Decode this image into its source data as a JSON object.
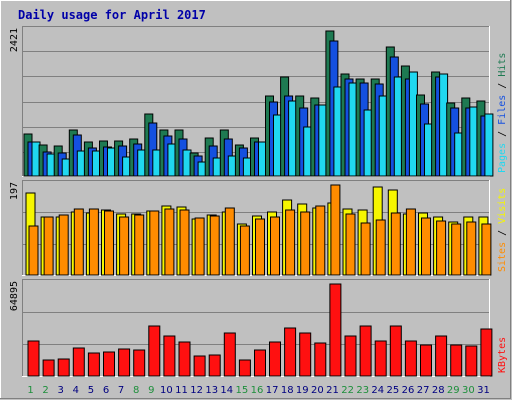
{
  "title": "Daily usage for April 2017",
  "colors": {
    "background": "#c0c0c0",
    "plot_bg": "#c0c0c0",
    "title": "#0000a8",
    "hits": "#1e7a52",
    "files": "#1450e0",
    "pages": "#20d8f0",
    "visits": "#f6f600",
    "sites": "#ff8c00",
    "kbytes": "#ff1010",
    "weekend_day": "#1e8f3c",
    "weekday_day": "#000080"
  },
  "legend_sep": "/",
  "chart_data": [
    {
      "type": "bar",
      "name": "hits-files-pages",
      "ymax_label": "2421",
      "ylim": [
        0,
        2421
      ],
      "legend": [
        "Pages",
        "Files",
        "Hits"
      ],
      "categories": [
        "1",
        "2",
        "3",
        "4",
        "5",
        "6",
        "7",
        "8",
        "9",
        "10",
        "11",
        "12",
        "13",
        "14",
        "15",
        "16",
        "17",
        "18",
        "19",
        "20",
        "21",
        "22",
        "23",
        "24",
        "25",
        "26",
        "27",
        "28",
        "29",
        "30",
        "31"
      ],
      "series": [
        {
          "name": "Hits",
          "values": [
            700,
            520,
            500,
            760,
            560,
            580,
            580,
            620,
            1040,
            760,
            760,
            380,
            640,
            760,
            520,
            640,
            1340,
            1660,
            1340,
            1300,
            2421,
            1700,
            1620,
            1620,
            2160,
            1840,
            1360,
            1740,
            1220,
            1300,
            1260
          ]
        },
        {
          "name": "Files",
          "values": [
            560,
            400,
            380,
            680,
            460,
            480,
            500,
            540,
            880,
            660,
            620,
            340,
            500,
            620,
            460,
            560,
            1240,
            1340,
            1140,
            1180,
            2260,
            1620,
            1560,
            1540,
            1980,
            1620,
            1200,
            1660,
            1140,
            1140,
            1000
          ]
        },
        {
          "name": "Pages",
          "values": [
            560,
            360,
            280,
            420,
            420,
            460,
            320,
            440,
            440,
            540,
            440,
            240,
            300,
            340,
            300,
            560,
            1020,
            1260,
            820,
            1180,
            1480,
            1560,
            1100,
            1340,
            1660,
            1740,
            860,
            1700,
            720,
            1160,
            1040
          ]
        }
      ]
    },
    {
      "type": "bar",
      "name": "visits-sites",
      "ymax_label": "197",
      "ylim": [
        0,
        197
      ],
      "legend": [
        "Sites",
        "Visits"
      ],
      "categories": [
        "1",
        "2",
        "3",
        "4",
        "5",
        "6",
        "7",
        "8",
        "9",
        "10",
        "11",
        "12",
        "13",
        "14",
        "15",
        "16",
        "17",
        "18",
        "19",
        "20",
        "21",
        "22",
        "23",
        "24",
        "25",
        "26",
        "27",
        "28",
        "29",
        "30",
        "31"
      ],
      "series": [
        {
          "name": "Visits",
          "values": [
            180,
            126,
            128,
            137,
            135,
            143,
            134,
            133,
            141,
            152,
            149,
            123,
            131,
            138,
            112,
            129,
            137,
            164,
            156,
            146,
            157,
            144,
            142,
            193,
            187,
            134,
            135,
            127,
            116,
            127,
            127
          ]
        },
        {
          "name": "Sites",
          "values": [
            107,
            128,
            132,
            144,
            145,
            140,
            128,
            131,
            141,
            145,
            143,
            124,
            130,
            147,
            107,
            122,
            128,
            143,
            137,
            150,
            197,
            133,
            113,
            121,
            136,
            145,
            124,
            119,
            111,
            115,
            111
          ]
        }
      ]
    },
    {
      "type": "bar",
      "name": "kbytes",
      "ymax_label": "64895",
      "ylim": [
        0,
        64895
      ],
      "legend": [
        "KBytes"
      ],
      "categories": [
        "1",
        "2",
        "3",
        "4",
        "5",
        "6",
        "7",
        "8",
        "9",
        "10",
        "11",
        "12",
        "13",
        "14",
        "15",
        "16",
        "17",
        "18",
        "19",
        "20",
        "21",
        "22",
        "23",
        "24",
        "25",
        "26",
        "27",
        "28",
        "29",
        "30",
        "31"
      ],
      "series": [
        {
          "name": "KBytes",
          "values": [
            25000,
            11000,
            12000,
            20000,
            16000,
            17000,
            19000,
            18000,
            35000,
            28000,
            24000,
            14000,
            15000,
            30000,
            11000,
            18000,
            24000,
            34000,
            30000,
            23000,
            64895,
            28000,
            35000,
            25000,
            35000,
            25000,
            22000,
            28000,
            22000,
            21000,
            33000
          ]
        }
      ]
    }
  ],
  "days": [
    {
      "label": "1",
      "weekend": true
    },
    {
      "label": "2",
      "weekend": true
    },
    {
      "label": "3",
      "weekend": false
    },
    {
      "label": "4",
      "weekend": false
    },
    {
      "label": "5",
      "weekend": false
    },
    {
      "label": "6",
      "weekend": false
    },
    {
      "label": "7",
      "weekend": false
    },
    {
      "label": "8",
      "weekend": true
    },
    {
      "label": "9",
      "weekend": true
    },
    {
      "label": "10",
      "weekend": false
    },
    {
      "label": "11",
      "weekend": false
    },
    {
      "label": "12",
      "weekend": false
    },
    {
      "label": "13",
      "weekend": false
    },
    {
      "label": "14",
      "weekend": false
    },
    {
      "label": "15",
      "weekend": true
    },
    {
      "label": "16",
      "weekend": true
    },
    {
      "label": "17",
      "weekend": false
    },
    {
      "label": "18",
      "weekend": false
    },
    {
      "label": "19",
      "weekend": false
    },
    {
      "label": "20",
      "weekend": false
    },
    {
      "label": "21",
      "weekend": false
    },
    {
      "label": "22",
      "weekend": true
    },
    {
      "label": "23",
      "weekend": true
    },
    {
      "label": "24",
      "weekend": false
    },
    {
      "label": "25",
      "weekend": false
    },
    {
      "label": "26",
      "weekend": false
    },
    {
      "label": "27",
      "weekend": false
    },
    {
      "label": "28",
      "weekend": false
    },
    {
      "label": "29",
      "weekend": true
    },
    {
      "label": "30",
      "weekend": true
    },
    {
      "label": "31",
      "weekend": false
    }
  ]
}
